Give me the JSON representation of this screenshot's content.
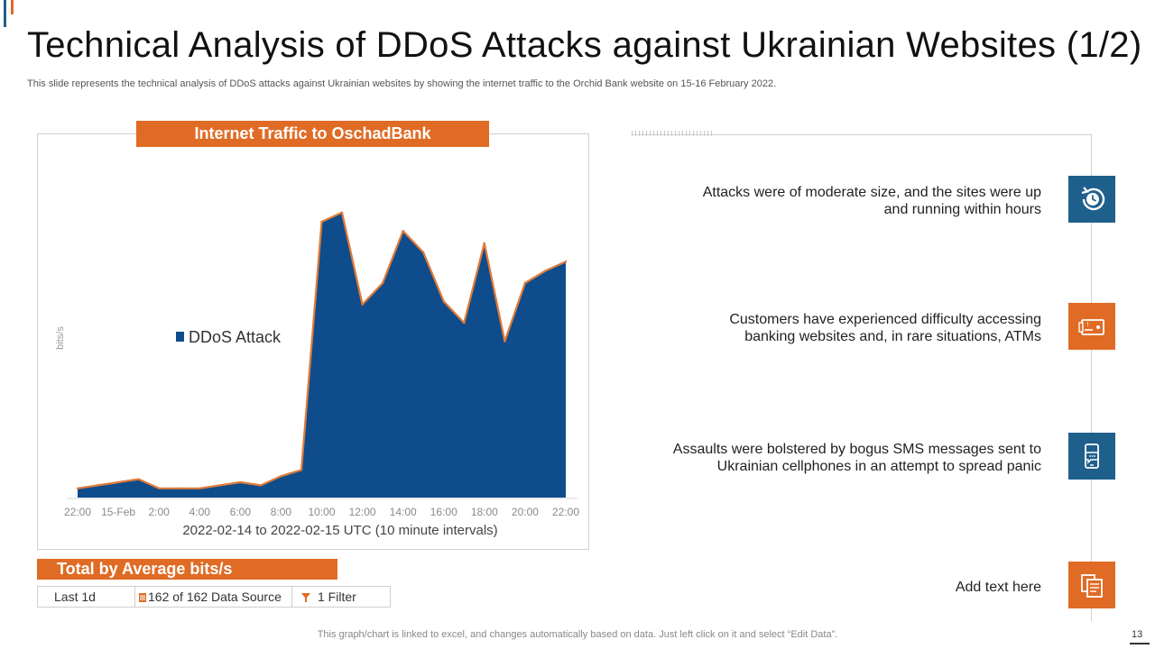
{
  "slide": {
    "title": "Technical Analysis of DDoS Attacks against Ukrainian Websites (1/2)",
    "subtitle": "This slide represents the technical analysis of DDoS attacks against Ukrainian websites by showing the internet traffic to the Orchid Bank website on 15-16 February 2022.",
    "footer": "This graph/chart is linked to excel,  and changes automatically based on data. Just left click on it and select “Edit Data”.",
    "page_number": "13"
  },
  "colors": {
    "accent": "#e06b25",
    "primary": "#1f5f8b"
  },
  "chart_data": {
    "type": "area",
    "title": "Internet Traffic to OschadBank",
    "xlabel": "2022-02-14 to 2022-02-15 UTC (10 minute intervals)",
    "ylabel": "bits/s",
    "legend": "DDoS Attack",
    "ylim": [
      0,
      100
    ],
    "x_ticks": [
      "22:00",
      "15-Feb",
      "2:00",
      "4:00",
      "6:00",
      "8:00",
      "10:00",
      "12:00",
      "14:00",
      "16:00",
      "18:00",
      "20:00",
      "22:00"
    ],
    "series": [
      {
        "name": "DDoS Attack",
        "x": [
          0,
          0.5,
          1,
          1.5,
          2,
          2.5,
          3,
          3.5,
          4,
          4.5,
          5,
          5.5,
          6,
          6.5,
          7,
          7.5,
          8,
          8.5,
          9,
          9.5,
          10,
          10.5,
          11,
          11.5,
          12
        ],
        "values": [
          3,
          4,
          5,
          6,
          3,
          3,
          3,
          4,
          5,
          4,
          7,
          9,
          90,
          93,
          63,
          70,
          87,
          80,
          64,
          57,
          83,
          51,
          70,
          74,
          77
        ]
      }
    ]
  },
  "summary": {
    "total_label": "Total by Average bits/s",
    "filters": [
      "Last 1d",
      "162 of 162 Data Source",
      "1 Filter"
    ]
  },
  "points": [
    {
      "text1": "Attacks were of moderate size, and the sites were up",
      "text2": "and running within hours",
      "icon": "clock-icon"
    },
    {
      "text1": "Customers have experienced difficulty accessing",
      "text2": "banking websites and, in rare situations, ATMs",
      "icon": "card-icon"
    },
    {
      "text1": "Assaults were bolstered by bogus SMS messages sent to",
      "text2": "Ukrainian cellphones in an attempt to spread panic",
      "icon": "phone-message-icon"
    },
    {
      "text1": "Add text here",
      "text2": "",
      "icon": "documents-icon"
    }
  ]
}
